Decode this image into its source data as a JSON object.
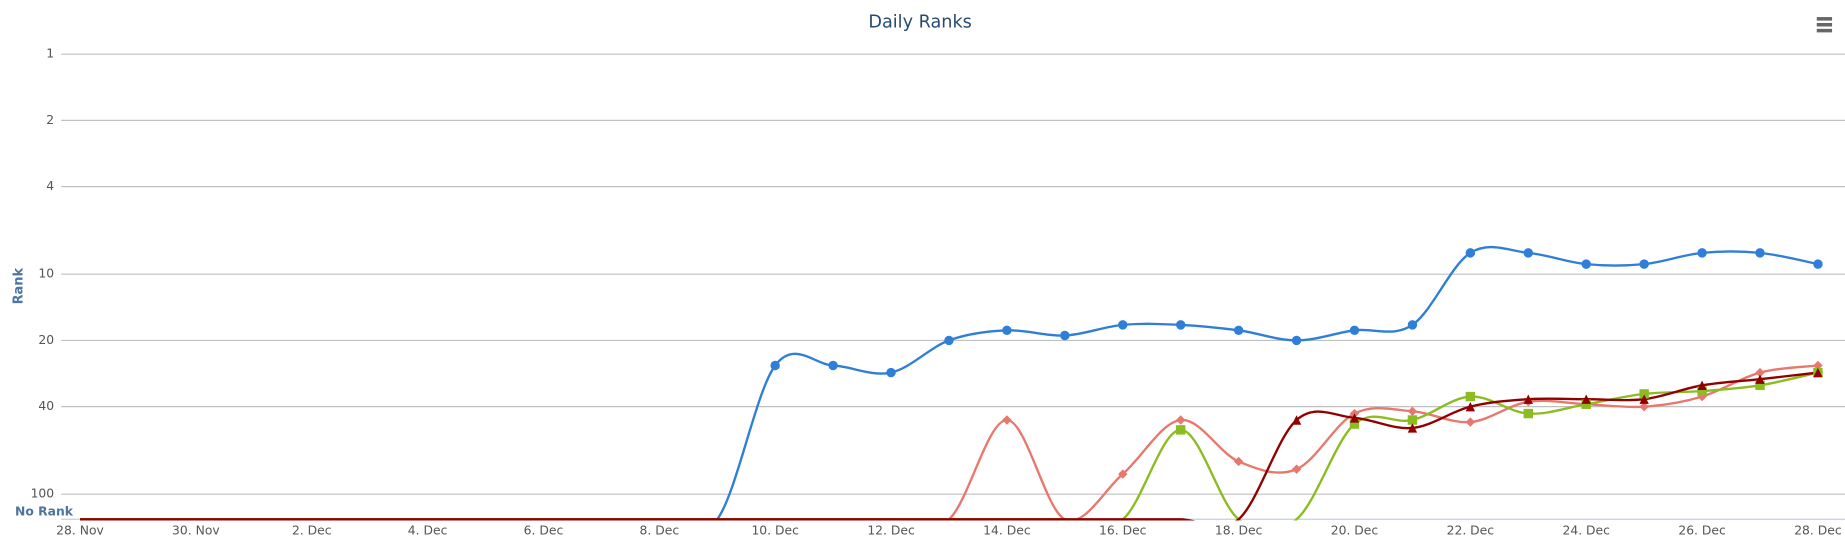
{
  "chart_data": {
    "type": "line",
    "title": "Daily Ranks",
    "y_label": "Rank",
    "ylog": true,
    "yreversed": true,
    "ylim": [
      1,
      130
    ],
    "yticks": [
      1,
      2,
      4,
      10,
      20,
      40,
      100,
      {
        "value": 130,
        "label": "No Rank"
      }
    ],
    "grid": true,
    "spline": true,
    "categories": [
      "28. Nov",
      null,
      "30. Nov",
      null,
      "2. Dec",
      null,
      "4. Dec",
      null,
      "6. Dec",
      null,
      "8. Dec",
      null,
      "10. Dec",
      null,
      "12. Dec",
      null,
      "14. Dec",
      null,
      "16. Dec",
      null,
      "18. Dec",
      null,
      "20. Dec",
      null,
      "22. Dec",
      null,
      "24. Dec",
      null,
      "26. Dec",
      null,
      "28. Dec"
    ],
    "series": [
      {
        "color": "#2f7ed8",
        "marker": "circle",
        "values": [
          130,
          130,
          130,
          130,
          130,
          130,
          130,
          130,
          130,
          130,
          130,
          130,
          26,
          26,
          28,
          20,
          18,
          19,
          17,
          17,
          18,
          20,
          18,
          17,
          8,
          8,
          9,
          9,
          8,
          8,
          9
        ]
      },
      {
        "color": "#e8776e",
        "marker": "diamond",
        "values": [
          130,
          130,
          130,
          130,
          130,
          130,
          130,
          130,
          130,
          130,
          130,
          130,
          130,
          130,
          130,
          130,
          46,
          130,
          81,
          46,
          71,
          77,
          43,
          42,
          47,
          38,
          39,
          40,
          36,
          28,
          26
        ]
      },
      {
        "color": "#8bbc21",
        "marker": "square",
        "values": [
          130,
          130,
          130,
          130,
          130,
          130,
          130,
          130,
          130,
          130,
          130,
          130,
          130,
          130,
          130,
          130,
          130,
          130,
          130,
          51,
          130,
          130,
          48,
          46,
          36,
          43,
          39,
          35,
          34,
          32,
          28
        ]
      },
      {
        "color": "#910000",
        "marker": "triangle",
        "values": [
          130,
          130,
          130,
          130,
          130,
          130,
          130,
          130,
          130,
          130,
          130,
          130,
          130,
          130,
          130,
          130,
          130,
          130,
          130,
          130,
          130,
          46,
          45,
          50,
          40,
          37,
          37,
          37,
          32,
          30,
          28
        ]
      }
    ]
  }
}
